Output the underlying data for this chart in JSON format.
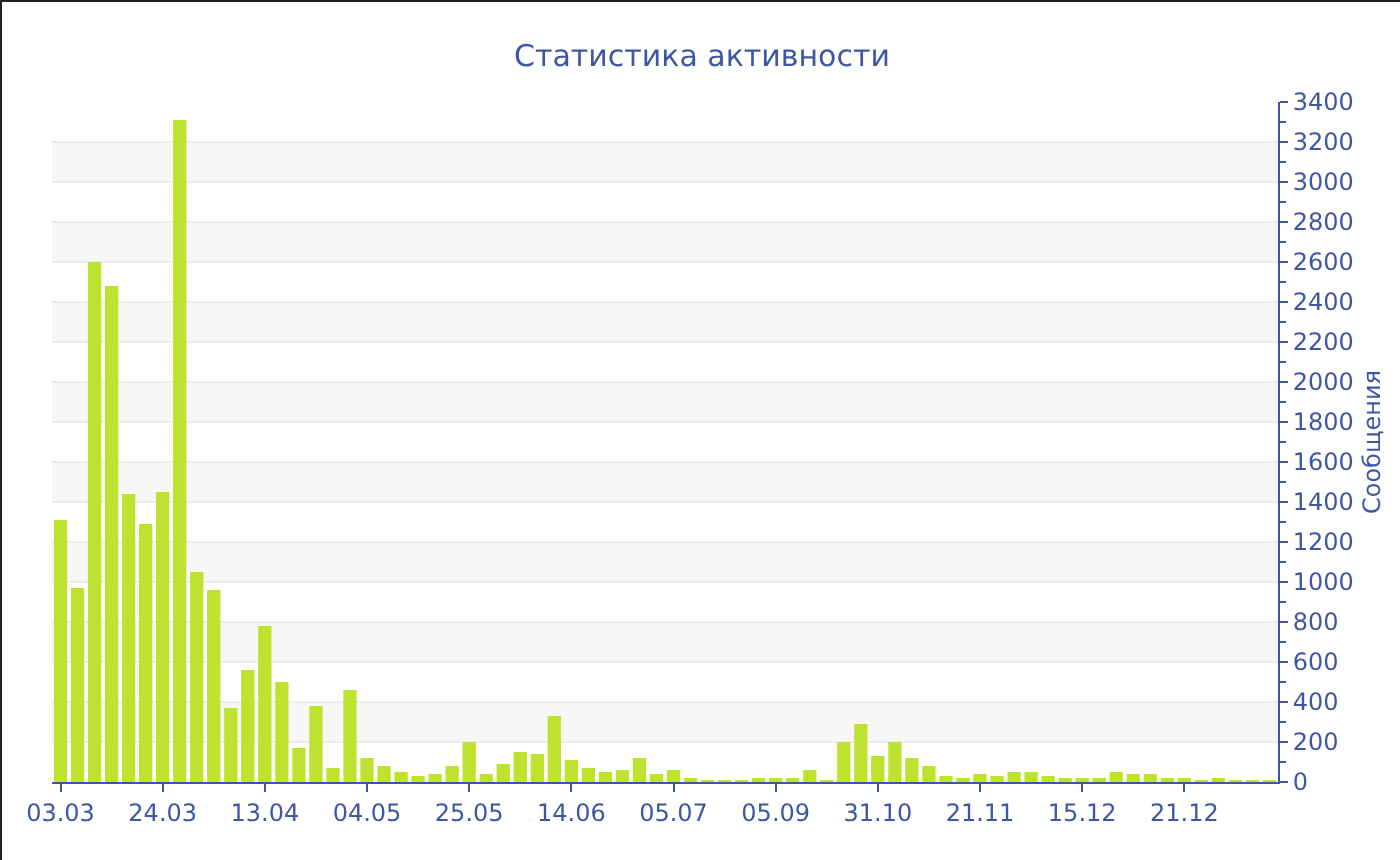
{
  "chart_data": {
    "type": "bar",
    "title": "Статистика активности",
    "ylabel": "Сообщения",
    "categories": [
      "03.03",
      null,
      null,
      null,
      null,
      null,
      "24.03",
      null,
      null,
      null,
      null,
      null,
      "13.04",
      null,
      null,
      null,
      null,
      null,
      "04.05",
      null,
      null,
      null,
      null,
      null,
      "25.05",
      null,
      null,
      null,
      null,
      null,
      "14.06",
      null,
      null,
      null,
      null,
      null,
      "05.07",
      null,
      null,
      null,
      null,
      null,
      "05.09",
      null,
      null,
      null,
      null,
      null,
      "31.10",
      null,
      null,
      null,
      null,
      null,
      "21.11",
      null,
      null,
      null,
      null,
      null,
      "15.12",
      null,
      null,
      null,
      null,
      null,
      "21.12",
      null,
      null,
      null,
      null,
      null
    ],
    "values": [
      1310,
      970,
      2600,
      2480,
      1440,
      1290,
      1450,
      3310,
      1050,
      960,
      370,
      560,
      780,
      500,
      170,
      380,
      70,
      460,
      120,
      80,
      50,
      30,
      40,
      80,
      200,
      40,
      90,
      150,
      140,
      330,
      110,
      70,
      50,
      60,
      120,
      40,
      60,
      20,
      10,
      10,
      10,
      20,
      20,
      20,
      60,
      10,
      200,
      290,
      130,
      200,
      120,
      80,
      30,
      20,
      40,
      30,
      50,
      50,
      30,
      20,
      20,
      20,
      50,
      40,
      40,
      20,
      20,
      10,
      20,
      10,
      10,
      10
    ],
    "color": "#bde22f",
    "ylim": [
      0,
      3400
    ],
    "yticks": [
      0,
      200,
      400,
      600,
      800,
      1000,
      1200,
      1400,
      1600,
      1800,
      2000,
      2200,
      2400,
      2600,
      2800,
      3000,
      3200,
      3400
    ],
    "grid": true
  }
}
